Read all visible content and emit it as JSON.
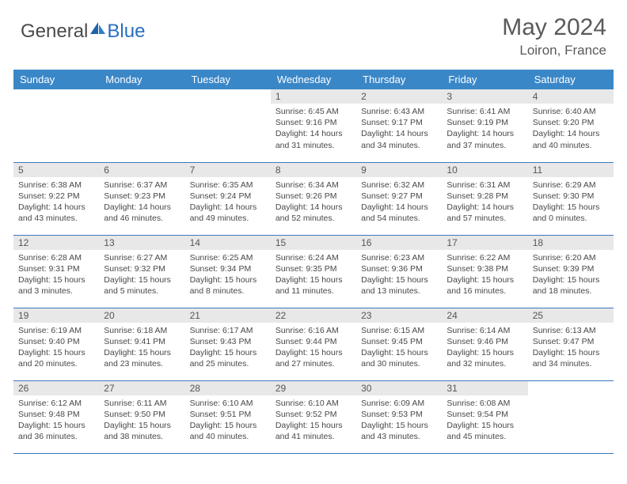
{
  "brand": {
    "part1": "General",
    "part2": "Blue"
  },
  "title": "May 2024",
  "location": "Loiron, France",
  "colors": {
    "header_bg": "#3a87c8",
    "header_text": "#ffffff",
    "daynum_bg": "#e8e8e8",
    "daynum_text": "#555555",
    "border": "#3a7abf",
    "body_text": "#484848",
    "title_text": "#5a5a5a"
  },
  "weekdays": [
    "Sunday",
    "Monday",
    "Tuesday",
    "Wednesday",
    "Thursday",
    "Friday",
    "Saturday"
  ],
  "weeks": [
    [
      null,
      null,
      null,
      {
        "n": "1",
        "sr": "Sunrise: 6:45 AM",
        "ss": "Sunset: 9:16 PM",
        "d1": "Daylight: 14 hours",
        "d2": "and 31 minutes."
      },
      {
        "n": "2",
        "sr": "Sunrise: 6:43 AM",
        "ss": "Sunset: 9:17 PM",
        "d1": "Daylight: 14 hours",
        "d2": "and 34 minutes."
      },
      {
        "n": "3",
        "sr": "Sunrise: 6:41 AM",
        "ss": "Sunset: 9:19 PM",
        "d1": "Daylight: 14 hours",
        "d2": "and 37 minutes."
      },
      {
        "n": "4",
        "sr": "Sunrise: 6:40 AM",
        "ss": "Sunset: 9:20 PM",
        "d1": "Daylight: 14 hours",
        "d2": "and 40 minutes."
      }
    ],
    [
      {
        "n": "5",
        "sr": "Sunrise: 6:38 AM",
        "ss": "Sunset: 9:22 PM",
        "d1": "Daylight: 14 hours",
        "d2": "and 43 minutes."
      },
      {
        "n": "6",
        "sr": "Sunrise: 6:37 AM",
        "ss": "Sunset: 9:23 PM",
        "d1": "Daylight: 14 hours",
        "d2": "and 46 minutes."
      },
      {
        "n": "7",
        "sr": "Sunrise: 6:35 AM",
        "ss": "Sunset: 9:24 PM",
        "d1": "Daylight: 14 hours",
        "d2": "and 49 minutes."
      },
      {
        "n": "8",
        "sr": "Sunrise: 6:34 AM",
        "ss": "Sunset: 9:26 PM",
        "d1": "Daylight: 14 hours",
        "d2": "and 52 minutes."
      },
      {
        "n": "9",
        "sr": "Sunrise: 6:32 AM",
        "ss": "Sunset: 9:27 PM",
        "d1": "Daylight: 14 hours",
        "d2": "and 54 minutes."
      },
      {
        "n": "10",
        "sr": "Sunrise: 6:31 AM",
        "ss": "Sunset: 9:28 PM",
        "d1": "Daylight: 14 hours",
        "d2": "and 57 minutes."
      },
      {
        "n": "11",
        "sr": "Sunrise: 6:29 AM",
        "ss": "Sunset: 9:30 PM",
        "d1": "Daylight: 15 hours",
        "d2": "and 0 minutes."
      }
    ],
    [
      {
        "n": "12",
        "sr": "Sunrise: 6:28 AM",
        "ss": "Sunset: 9:31 PM",
        "d1": "Daylight: 15 hours",
        "d2": "and 3 minutes."
      },
      {
        "n": "13",
        "sr": "Sunrise: 6:27 AM",
        "ss": "Sunset: 9:32 PM",
        "d1": "Daylight: 15 hours",
        "d2": "and 5 minutes."
      },
      {
        "n": "14",
        "sr": "Sunrise: 6:25 AM",
        "ss": "Sunset: 9:34 PM",
        "d1": "Daylight: 15 hours",
        "d2": "and 8 minutes."
      },
      {
        "n": "15",
        "sr": "Sunrise: 6:24 AM",
        "ss": "Sunset: 9:35 PM",
        "d1": "Daylight: 15 hours",
        "d2": "and 11 minutes."
      },
      {
        "n": "16",
        "sr": "Sunrise: 6:23 AM",
        "ss": "Sunset: 9:36 PM",
        "d1": "Daylight: 15 hours",
        "d2": "and 13 minutes."
      },
      {
        "n": "17",
        "sr": "Sunrise: 6:22 AM",
        "ss": "Sunset: 9:38 PM",
        "d1": "Daylight: 15 hours",
        "d2": "and 16 minutes."
      },
      {
        "n": "18",
        "sr": "Sunrise: 6:20 AM",
        "ss": "Sunset: 9:39 PM",
        "d1": "Daylight: 15 hours",
        "d2": "and 18 minutes."
      }
    ],
    [
      {
        "n": "19",
        "sr": "Sunrise: 6:19 AM",
        "ss": "Sunset: 9:40 PM",
        "d1": "Daylight: 15 hours",
        "d2": "and 20 minutes."
      },
      {
        "n": "20",
        "sr": "Sunrise: 6:18 AM",
        "ss": "Sunset: 9:41 PM",
        "d1": "Daylight: 15 hours",
        "d2": "and 23 minutes."
      },
      {
        "n": "21",
        "sr": "Sunrise: 6:17 AM",
        "ss": "Sunset: 9:43 PM",
        "d1": "Daylight: 15 hours",
        "d2": "and 25 minutes."
      },
      {
        "n": "22",
        "sr": "Sunrise: 6:16 AM",
        "ss": "Sunset: 9:44 PM",
        "d1": "Daylight: 15 hours",
        "d2": "and 27 minutes."
      },
      {
        "n": "23",
        "sr": "Sunrise: 6:15 AM",
        "ss": "Sunset: 9:45 PM",
        "d1": "Daylight: 15 hours",
        "d2": "and 30 minutes."
      },
      {
        "n": "24",
        "sr": "Sunrise: 6:14 AM",
        "ss": "Sunset: 9:46 PM",
        "d1": "Daylight: 15 hours",
        "d2": "and 32 minutes."
      },
      {
        "n": "25",
        "sr": "Sunrise: 6:13 AM",
        "ss": "Sunset: 9:47 PM",
        "d1": "Daylight: 15 hours",
        "d2": "and 34 minutes."
      }
    ],
    [
      {
        "n": "26",
        "sr": "Sunrise: 6:12 AM",
        "ss": "Sunset: 9:48 PM",
        "d1": "Daylight: 15 hours",
        "d2": "and 36 minutes."
      },
      {
        "n": "27",
        "sr": "Sunrise: 6:11 AM",
        "ss": "Sunset: 9:50 PM",
        "d1": "Daylight: 15 hours",
        "d2": "and 38 minutes."
      },
      {
        "n": "28",
        "sr": "Sunrise: 6:10 AM",
        "ss": "Sunset: 9:51 PM",
        "d1": "Daylight: 15 hours",
        "d2": "and 40 minutes."
      },
      {
        "n": "29",
        "sr": "Sunrise: 6:10 AM",
        "ss": "Sunset: 9:52 PM",
        "d1": "Daylight: 15 hours",
        "d2": "and 41 minutes."
      },
      {
        "n": "30",
        "sr": "Sunrise: 6:09 AM",
        "ss": "Sunset: 9:53 PM",
        "d1": "Daylight: 15 hours",
        "d2": "and 43 minutes."
      },
      {
        "n": "31",
        "sr": "Sunrise: 6:08 AM",
        "ss": "Sunset: 9:54 PM",
        "d1": "Daylight: 15 hours",
        "d2": "and 45 minutes."
      },
      null
    ]
  ]
}
